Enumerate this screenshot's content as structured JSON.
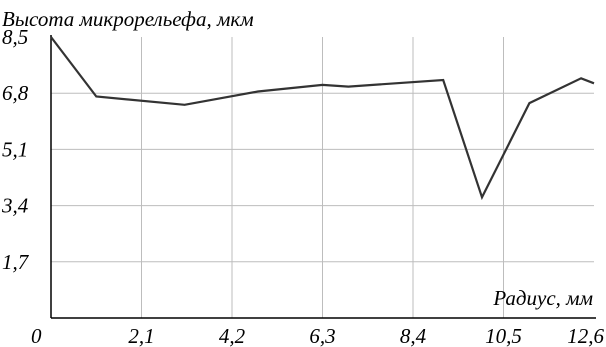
{
  "chart_data": {
    "type": "line",
    "title": "Высота микрорельефа, мкм",
    "ylabel": "Высота микрорельефа, мкм",
    "xlabel": "Радиус, мм",
    "xlim": [
      0,
      12.6
    ],
    "ylim": [
      0,
      8.5
    ],
    "x_ticks": [
      "0",
      "2,1",
      "4,2",
      "6,3",
      "8,4",
      "10,5",
      "12,6"
    ],
    "y_ticks": [
      "8,5",
      "6,8",
      "5,1",
      "3,4",
      "1,7"
    ],
    "grid": true,
    "series": [
      {
        "x": [
          0,
          1.05,
          3.1,
          4.8,
          6.3,
          6.9,
          9.1,
          10.0,
          11.1,
          12.3,
          12.6
        ],
        "values": [
          8.5,
          6.7,
          6.45,
          6.85,
          7.05,
          7.0,
          7.2,
          3.65,
          6.5,
          7.25,
          7.1
        ]
      }
    ],
    "colors": {
      "line": "#333333",
      "grid": "#bdbdbd",
      "axis": "#000000"
    }
  }
}
